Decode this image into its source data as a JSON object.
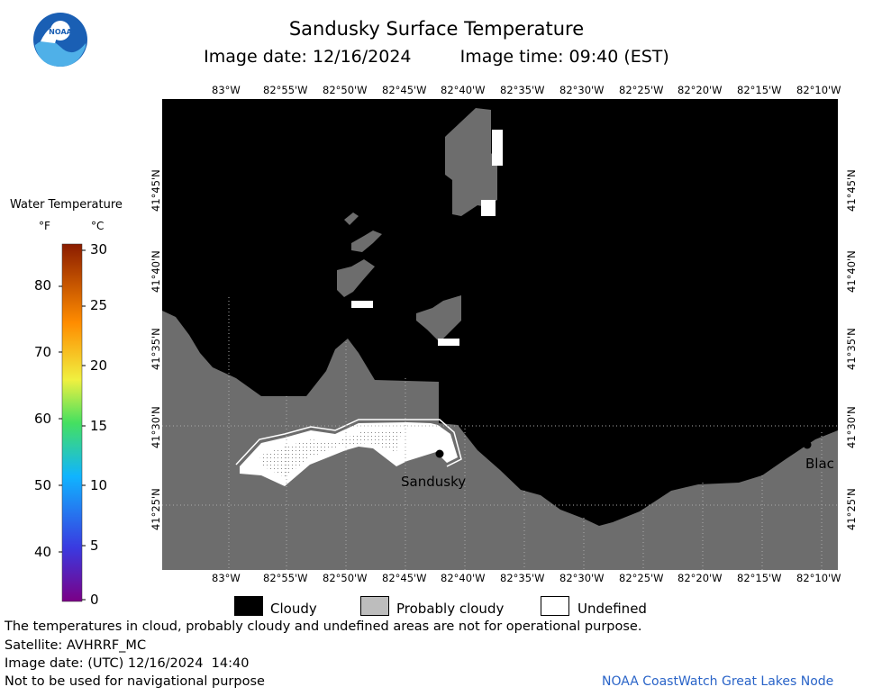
{
  "header": {
    "title": "Sandusky Surface Temperature",
    "date_label": "Image date: 12/16/2024",
    "time_label": "Image time: 09:40 (EST)"
  },
  "logo": {
    "text": "NOAA"
  },
  "map": {
    "lon_labels": [
      "83°W",
      "82°55'W",
      "82°50'W",
      "82°45'W",
      "82°40'W",
      "82°35'W",
      "82°30'W",
      "82°25'W",
      "82°20'W",
      "82°15'W",
      "82°10'W"
    ],
    "lat_labels": [
      "41°45'N",
      "41°40'N",
      "41°35'N",
      "41°30'N",
      "41°25'N"
    ],
    "places": {
      "sandusky": "Sandusky",
      "blackriver": "Blac"
    },
    "colors": {
      "cloudy": "#000000",
      "probably_cloudy": "#6d6d6d",
      "undefined": "#ffffff"
    }
  },
  "color_scale": {
    "title": "Water Temperature",
    "unit_f": "°F",
    "unit_c": "°C",
    "f_ticks": [
      "80",
      "70",
      "60",
      "50",
      "40"
    ],
    "c_ticks": [
      "30",
      "25",
      "20",
      "15",
      "10",
      "5",
      "0"
    ]
  },
  "legend": {
    "cloudy": "Cloudy",
    "probably_cloudy": "Probably cloudy",
    "undefined": "Undefined"
  },
  "footer": {
    "disclaimer": "The temperatures in cloud, probably cloudy and undefined areas are not for operational purpose.",
    "satellite": "Satellite: AVHRRF_MC",
    "utc_date": "Image date: (UTC) 12/16/2024  14:40",
    "nav_warning": "Not to be used for navigational purpose",
    "credit": "NOAA CoastWatch Great Lakes Node"
  }
}
